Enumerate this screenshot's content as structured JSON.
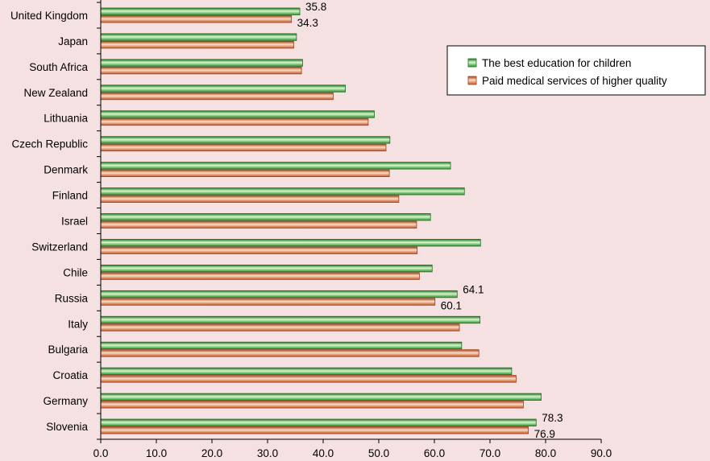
{
  "chart_data": {
    "type": "bar",
    "orientation": "horizontal",
    "categories": [
      "United Kingdom",
      "Japan",
      "South Africa",
      "New Zealand",
      "Lithuania",
      "Czech Republic",
      "Denmark",
      "Finland",
      "Israel",
      "Switzerland",
      "Chile",
      "Russia",
      "Italy",
      "Bulgaria",
      "Croatia",
      "Germany",
      "Slovenia"
    ],
    "series": [
      {
        "name": "The best education for children",
        "color": "#3cb43c",
        "values": [
          35.8,
          35.2,
          36.3,
          44.0,
          49.2,
          52.0,
          62.9,
          65.4,
          59.3,
          68.3,
          59.6,
          64.1,
          68.2,
          64.9,
          73.9,
          79.2,
          78.3
        ]
      },
      {
        "name": "Paid medical services of higher quality",
        "color": "#e07a45",
        "values": [
          34.3,
          34.7,
          36.1,
          41.8,
          48.1,
          51.3,
          51.9,
          53.6,
          56.8,
          56.9,
          57.3,
          60.1,
          64.5,
          68.0,
          74.7,
          76.0,
          76.9
        ]
      }
    ],
    "data_labels": [
      {
        "category": "United Kingdom",
        "series": 0,
        "text": "35.8"
      },
      {
        "category": "United Kingdom",
        "series": 1,
        "text": "34.3"
      },
      {
        "category": "Russia",
        "series": 0,
        "text": "64.1"
      },
      {
        "category": "Russia",
        "series": 1,
        "text": "60.1"
      },
      {
        "category": "Slovenia",
        "series": 0,
        "text": "78.3"
      },
      {
        "category": "Slovenia",
        "series": 1,
        "text": "76.9"
      }
    ],
    "xlim": [
      0,
      90
    ],
    "xticks": [
      "0.0",
      "10.0",
      "20.0",
      "30.0",
      "40.0",
      "50.0",
      "60.0",
      "70.0",
      "80.0",
      "90.0"
    ],
    "title": "",
    "xlabel": "",
    "ylabel": "",
    "grid": false,
    "legend_position": "top-right"
  }
}
